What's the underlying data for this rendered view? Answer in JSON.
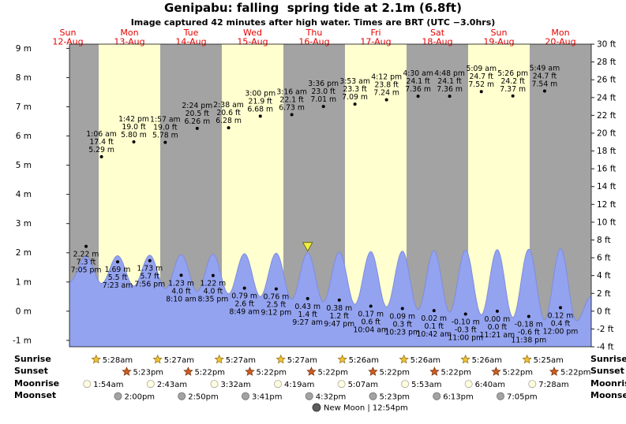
{
  "chart_data": {
    "type": "area",
    "title": "Genipabu: falling  spring tide at 2.1m (6.8ft)",
    "subtitle": "Image captured 42 minutes after high water. Times are BRT (UTC −3.0hrs)",
    "day_label_color": "#e60000",
    "band_colors": {
      "gray": "#a3a3a3",
      "yellow": "#ffffcf"
    },
    "curve_color": "#94a3ef",
    "curve_stroke": "#7d8ce0",
    "x_days": [
      {
        "name": "Sun",
        "date": "12-Aug"
      },
      {
        "name": "Mon",
        "date": "13-Aug"
      },
      {
        "name": "Tue",
        "date": "14-Aug"
      },
      {
        "name": "Wed",
        "date": "15-Aug"
      },
      {
        "name": "Thu",
        "date": "16-Aug"
      },
      {
        "name": "Fri",
        "date": "17-Aug"
      },
      {
        "name": "Sat",
        "date": "18-Aug"
      },
      {
        "name": "Sun",
        "date": "19-Aug"
      },
      {
        "name": "Mon",
        "date": "20-Aug"
      }
    ],
    "y_axis_left": {
      "unit": "m",
      "ticks": [
        9,
        8,
        7,
        6,
        5,
        4,
        3,
        2,
        1,
        0,
        -1
      ]
    },
    "y_axis_right": {
      "unit": "ft",
      "ticks": [
        30,
        28,
        26,
        24,
        22,
        20,
        18,
        16,
        14,
        12,
        10,
        8,
        6,
        4,
        2,
        0,
        -2,
        -4
      ]
    },
    "high_tides": [
      {
        "day": 1,
        "hour": 1.1,
        "time": "1:06 am",
        "ft": "17.4 ft",
        "m": "5.29 m",
        "val": 5.29
      },
      {
        "day": 1,
        "hour": 13.7,
        "time": "1:42 pm",
        "ft": "19.0 ft",
        "m": "5.80 m",
        "val": 5.8
      },
      {
        "day": 2,
        "hour": 1.95,
        "time": "1:57 am",
        "ft": "19.0 ft",
        "m": "5.78 m",
        "val": 5.78
      },
      {
        "day": 2,
        "hour": 14.4,
        "time": "2:24 pm",
        "ft": "20.5 ft",
        "m": "6.26 m",
        "val": 6.26
      },
      {
        "day": 3,
        "hour": 2.633,
        "time": "2:38 am",
        "ft": "20.6 ft",
        "m": "6.28 m",
        "val": 6.28
      },
      {
        "day": 3,
        "hour": 15.0,
        "time": "3:00 pm",
        "ft": "21.9 ft",
        "m": "6.68 m",
        "val": 6.68
      },
      {
        "day": 4,
        "hour": 3.267,
        "time": "3:16 am",
        "ft": "22.1 ft",
        "m": "6.73 m",
        "val": 6.73
      },
      {
        "day": 4,
        "hour": 15.6,
        "time": "3:36 pm",
        "ft": "23.0 ft",
        "m": "7.01 m",
        "val": 7.01
      },
      {
        "day": 5,
        "hour": 3.883,
        "time": "3:53 am",
        "ft": "23.3 ft",
        "m": "7.09 m",
        "val": 7.09
      },
      {
        "day": 5,
        "hour": 16.2,
        "time": "4:12 pm",
        "ft": "23.8 ft",
        "m": "7.24 m",
        "val": 7.24
      },
      {
        "day": 6,
        "hour": 4.5,
        "time": "4:30 am",
        "ft": "24.1 ft",
        "m": "7.36 m",
        "val": 7.36
      },
      {
        "day": 6,
        "hour": 16.8,
        "time": "4:48 pm",
        "ft": "24.1 ft",
        "m": "7.36 m",
        "val": 7.36
      },
      {
        "day": 7,
        "hour": 5.15,
        "time": "5:09 am",
        "ft": "24.7 ft",
        "m": "7.52 m",
        "val": 7.52
      },
      {
        "day": 7,
        "hour": 17.433,
        "time": "5:26 pm",
        "ft": "24.2 ft",
        "m": "7.37 m",
        "val": 7.37
      },
      {
        "day": 8,
        "hour": 5.817,
        "time": "5:49 am",
        "ft": "24.7 ft",
        "m": "7.54 m",
        "val": 7.54
      }
    ],
    "low_tides": [
      {
        "day": 0,
        "hour": 19.083,
        "time": "7:05 pm",
        "m": "2.22 m",
        "ft": "7.3 ft",
        "val": 2.22
      },
      {
        "day": 1,
        "hour": 7.383,
        "time": "7:23 am",
        "m": "1.69 m",
        "ft": "5.5 ft",
        "val": 1.69
      },
      {
        "day": 1,
        "hour": 19.933,
        "time": "7:56 pm",
        "m": "1.73 m",
        "ft": "5.7 ft",
        "val": 1.73
      },
      {
        "day": 2,
        "hour": 8.167,
        "time": "8:10 am",
        "m": "1.23 m",
        "ft": "4.0 ft",
        "val": 1.23
      },
      {
        "day": 2,
        "hour": 20.583,
        "time": "8:35 pm",
        "m": "1.22 m",
        "ft": "4.0 ft",
        "val": 1.22
      },
      {
        "day": 3,
        "hour": 8.817,
        "time": "8:49 am",
        "m": "0.79 m",
        "ft": "2.6 ft",
        "val": 0.79
      },
      {
        "day": 3,
        "hour": 21.2,
        "time": "9:12 pm",
        "m": "0.76 m",
        "ft": "2.5 ft",
        "val": 0.76
      },
      {
        "day": 4,
        "hour": 9.45,
        "time": "9:27 am",
        "m": "0.43 m",
        "ft": "1.4 ft",
        "val": 0.43
      },
      {
        "day": 4,
        "hour": 21.783,
        "time": "9:47 pm",
        "m": "0.38 m",
        "ft": "1.2 ft",
        "val": 0.38
      },
      {
        "day": 5,
        "hour": 10.067,
        "time": "10:04 am",
        "m": "0.17 m",
        "ft": "0.6 ft",
        "val": 0.17
      },
      {
        "day": 5,
        "hour": 22.383,
        "time": "10:23 pm",
        "m": "0.09 m",
        "ft": "0.3 ft",
        "val": 0.09
      },
      {
        "day": 6,
        "hour": 10.7,
        "time": "10:42 am",
        "m": "0.02 m",
        "ft": "0.1 ft",
        "val": 0.02
      },
      {
        "day": 6,
        "hour": 23.0,
        "time": "11:00 pm",
        "m": "-0.10 m",
        "ft": "-0.3 ft",
        "val": -0.1
      },
      {
        "day": 7,
        "hour": 11.35,
        "time": "11:21 am",
        "m": "0.00 m",
        "ft": "0.0 ft",
        "val": 0.0
      },
      {
        "day": 7,
        "hour": 23.633,
        "time": "11:38 pm",
        "m": "-0.18 m",
        "ft": "-0.6 ft",
        "val": -0.18
      },
      {
        "day": 8,
        "hour": 12.0,
        "time": "12:00 pm",
        "m": "0.12 m",
        "ft": "0.4 ft",
        "val": 0.12
      }
    ],
    "curve": {
      "start": [
        0.5256,
        1.0
      ],
      "crest_range": [
        1.88,
        2.14
      ],
      "trough_range": [
        0.95,
        -0.3
      ],
      "tail": [
        [
          8.76,
          -0.33
        ],
        [
          9.0,
          0.5
        ]
      ]
    },
    "marker": {
      "t": 4.394,
      "color": "#f2ee3f"
    },
    "astro": {
      "rows": [
        {
          "id": "sunrise",
          "label": "Sunrise",
          "icon": "star-gold",
          "entries": [
            {
              "day": 1,
              "hour": 5.467,
              "time": "5:28am"
            },
            {
              "day": 2,
              "hour": 5.45,
              "time": "5:27am"
            },
            {
              "day": 3,
              "hour": 5.45,
              "time": "5:27am"
            },
            {
              "day": 4,
              "hour": 5.45,
              "time": "5:27am"
            },
            {
              "day": 5,
              "hour": 5.433,
              "time": "5:26am"
            },
            {
              "day": 6,
              "hour": 5.433,
              "time": "5:26am"
            },
            {
              "day": 7,
              "hour": 5.433,
              "time": "5:26am"
            },
            {
              "day": 8,
              "hour": 5.417,
              "time": "5:25am"
            }
          ]
        },
        {
          "id": "sunset",
          "label": "Sunset",
          "icon": "star-orange",
          "entries": [
            {
              "day": 1,
              "hour": 17.383,
              "time": "5:23pm"
            },
            {
              "day": 2,
              "hour": 17.367,
              "time": "5:22pm"
            },
            {
              "day": 3,
              "hour": 17.367,
              "time": "5:22pm"
            },
            {
              "day": 4,
              "hour": 17.367,
              "time": "5:22pm"
            },
            {
              "day": 5,
              "hour": 17.367,
              "time": "5:22pm"
            },
            {
              "day": 6,
              "hour": 17.367,
              "time": "5:22pm"
            },
            {
              "day": 7,
              "hour": 17.367,
              "time": "5:22pm"
            },
            {
              "day": 8,
              "hour": 17.367,
              "time": "5:22pm"
            }
          ]
        },
        {
          "id": "moonrise",
          "label": "Moonrise",
          "icon": "moon-light",
          "entries": [
            {
              "day": 1,
              "hour": 1.9,
              "time": "1:54am"
            },
            {
              "day": 2,
              "hour": 2.717,
              "time": "2:43am"
            },
            {
              "day": 3,
              "hour": 3.533,
              "time": "3:32am"
            },
            {
              "day": 4,
              "hour": 4.317,
              "time": "4:19am"
            },
            {
              "day": 5,
              "hour": 5.117,
              "time": "5:07am"
            },
            {
              "day": 6,
              "hour": 5.883,
              "time": "5:53am"
            },
            {
              "day": 7,
              "hour": 6.667,
              "time": "6:40am"
            },
            {
              "day": 8,
              "hour": 7.467,
              "time": "7:28am"
            }
          ]
        },
        {
          "id": "moonset",
          "label": "Moonset",
          "icon": "moon-gray",
          "entries": [
            {
              "day": 1,
              "hour": 14.0,
              "time": "2:00pm"
            },
            {
              "day": 2,
              "hour": 14.833,
              "time": "2:50pm"
            },
            {
              "day": 3,
              "hour": 15.683,
              "time": "3:41pm"
            },
            {
              "day": 4,
              "hour": 16.533,
              "time": "4:32pm"
            },
            {
              "day": 5,
              "hour": 17.383,
              "time": "5:23pm"
            },
            {
              "day": 6,
              "hour": 18.217,
              "time": "6:13pm"
            },
            {
              "day": 7,
              "hour": 19.083,
              "time": "7:05pm"
            }
          ]
        }
      ],
      "new_moon": {
        "label": "New Moon | 12:54pm",
        "t": 5.128
      }
    }
  }
}
